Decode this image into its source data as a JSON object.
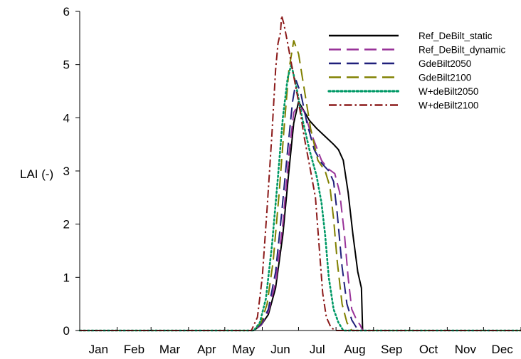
{
  "chart_data": {
    "type": "line",
    "title": "",
    "xlabel": "",
    "ylabel": "LAI (-)",
    "xlim": [
      0,
      365
    ],
    "ylim": [
      0,
      6
    ],
    "yticks": [
      0,
      1,
      2,
      3,
      4,
      5,
      6
    ],
    "grid": false,
    "legend_position": "top-right",
    "months": [
      "Jan",
      "Feb",
      "Mar",
      "Apr",
      "May",
      "Jun",
      "Jul",
      "Aug",
      "Sep",
      "Oct",
      "Nov",
      "Dec"
    ],
    "series": [
      {
        "name": "Ref_DeBilt_static",
        "color": "#000000",
        "dash": "solid",
        "points": [
          [
            0,
            0
          ],
          [
            144,
            0
          ],
          [
            150,
            0.1
          ],
          [
            156,
            0.3
          ],
          [
            162,
            0.8
          ],
          [
            168,
            1.8
          ],
          [
            173,
            3.0
          ],
          [
            177,
            3.9
          ],
          [
            181,
            4.3
          ],
          [
            185,
            4.15
          ],
          [
            190,
            3.95
          ],
          [
            196,
            3.8
          ],
          [
            203,
            3.65
          ],
          [
            210,
            3.5
          ],
          [
            214,
            3.4
          ],
          [
            218,
            3.2
          ],
          [
            222,
            2.6
          ],
          [
            226,
            1.8
          ],
          [
            230,
            1.1
          ],
          [
            233,
            0.8
          ],
          [
            234,
            0
          ],
          [
            365,
            0
          ]
        ]
      },
      {
        "name": "Ref_DeBilt_dynamic",
        "color": "#993399",
        "dash": "long-dash",
        "points": [
          [
            0,
            0
          ],
          [
            144,
            0
          ],
          [
            150,
            0.1
          ],
          [
            156,
            0.35
          ],
          [
            162,
            0.9
          ],
          [
            168,
            2.0
          ],
          [
            173,
            3.3
          ],
          [
            177,
            4.1
          ],
          [
            181,
            4.25
          ],
          [
            186,
            4.1
          ],
          [
            190,
            3.8
          ],
          [
            195,
            3.5
          ],
          [
            200,
            3.2
          ],
          [
            205,
            3.05
          ],
          [
            211,
            2.95
          ],
          [
            215,
            2.6
          ],
          [
            219,
            1.8
          ],
          [
            222,
            1.0
          ],
          [
            225,
            0.4
          ],
          [
            229,
            0.2
          ],
          [
            232,
            0.1
          ],
          [
            234,
            0
          ],
          [
            365,
            0
          ]
        ]
      },
      {
        "name": "GdeBilt2050",
        "color": "#1f1f7a",
        "dash": "long-dash",
        "points": [
          [
            0,
            0
          ],
          [
            144,
            0
          ],
          [
            150,
            0.12
          ],
          [
            156,
            0.4
          ],
          [
            162,
            1.1
          ],
          [
            167,
            2.2
          ],
          [
            172,
            3.4
          ],
          [
            176,
            4.3
          ],
          [
            179,
            4.7
          ],
          [
            183,
            4.45
          ],
          [
            188,
            3.9
          ],
          [
            194,
            3.4
          ],
          [
            200,
            3.15
          ],
          [
            206,
            3.0
          ],
          [
            210,
            2.8
          ],
          [
            213,
            2.2
          ],
          [
            217,
            1.2
          ],
          [
            221,
            0.5
          ],
          [
            225,
            0.2
          ],
          [
            229,
            0.05
          ],
          [
            232,
            0
          ],
          [
            365,
            0
          ]
        ]
      },
      {
        "name": "GdeBilt2100",
        "color": "#808000",
        "dash": "long-dash",
        "points": [
          [
            0,
            0
          ],
          [
            144,
            0
          ],
          [
            150,
            0.15
          ],
          [
            155,
            0.5
          ],
          [
            160,
            1.3
          ],
          [
            165,
            2.6
          ],
          [
            169,
            3.8
          ],
          [
            173,
            4.9
          ],
          [
            177,
            5.45
          ],
          [
            181,
            5.2
          ],
          [
            186,
            4.5
          ],
          [
            191,
            3.8
          ],
          [
            197,
            3.2
          ],
          [
            203,
            3.0
          ],
          [
            207,
            2.7
          ],
          [
            210,
            2.1
          ],
          [
            213,
            1.3
          ],
          [
            217,
            0.5
          ],
          [
            221,
            0.15
          ],
          [
            225,
            0
          ],
          [
            365,
            0
          ]
        ]
      },
      {
        "name": "W+deBilt2050",
        "color": "#009966",
        "dash": "dotted",
        "points": [
          [
            0,
            0
          ],
          [
            144,
            0
          ],
          [
            149,
            0.15
          ],
          [
            154,
            0.6
          ],
          [
            159,
            1.6
          ],
          [
            164,
            2.9
          ],
          [
            168,
            4.0
          ],
          [
            172,
            4.75
          ],
          [
            175,
            5.0
          ],
          [
            179,
            4.6
          ],
          [
            184,
            4.0
          ],
          [
            190,
            3.4
          ],
          [
            196,
            2.9
          ],
          [
            200,
            2.4
          ],
          [
            203,
            1.8
          ],
          [
            206,
            1.0
          ],
          [
            210,
            0.4
          ],
          [
            214,
            0.15
          ],
          [
            218,
            0
          ],
          [
            365,
            0
          ]
        ]
      },
      {
        "name": "W+deBilt2100",
        "color": "#8b1a1a",
        "dash": "dash-dot",
        "points": [
          [
            0,
            0
          ],
          [
            142,
            0
          ],
          [
            147,
            0.25
          ],
          [
            151,
            1.0
          ],
          [
            155,
            2.3
          ],
          [
            159,
            3.7
          ],
          [
            162,
            4.9
          ],
          [
            164,
            5.4
          ],
          [
            166,
            5.6
          ],
          [
            167,
            5.92
          ],
          [
            169,
            5.75
          ],
          [
            172,
            5.4
          ],
          [
            176,
            4.9
          ],
          [
            181,
            4.3
          ],
          [
            186,
            3.6
          ],
          [
            191,
            3.0
          ],
          [
            195,
            2.5
          ],
          [
            198,
            1.6
          ],
          [
            201,
            0.7
          ],
          [
            204,
            0.25
          ],
          [
            208,
            0.05
          ],
          [
            212,
            0
          ],
          [
            365,
            0
          ]
        ]
      }
    ]
  }
}
